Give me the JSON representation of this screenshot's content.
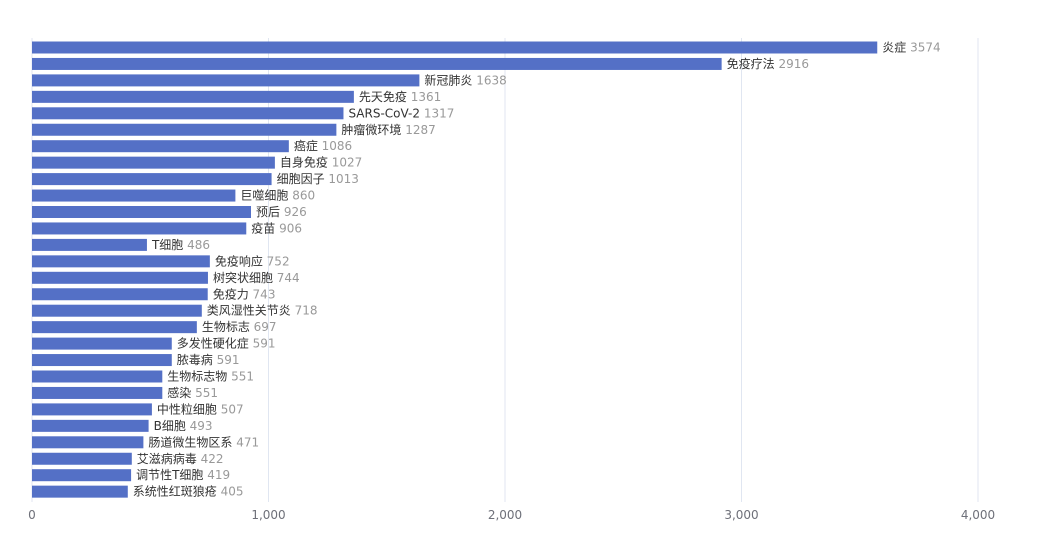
{
  "chart_data": {
    "type": "bar",
    "orientation": "horizontal",
    "categories": [
      "炎症",
      "免疫疗法",
      "新冠肺炎",
      "先天免疫",
      "SARS-CoV-2",
      "肿瘤微环境",
      "癌症",
      "自身免疫",
      "细胞因子",
      "巨噬细胞",
      "预后",
      "疫苗",
      "T细胞",
      "免疫响应",
      "树突状细胞",
      "免疫力",
      "类风湿性关节炎",
      "生物标志",
      "多发性硬化症",
      "脓毒病",
      "生物标志物",
      "感染",
      "中性粒细胞",
      "B细胞",
      "肠道微生物区系",
      "艾滋病病毒",
      "调节性T细胞",
      "系统性红斑狼疮"
    ],
    "values": [
      3574,
      2916,
      1638,
      1361,
      1317,
      1287,
      1086,
      1027,
      1013,
      860,
      926,
      906,
      486,
      752,
      744,
      743,
      718,
      697,
      591,
      591,
      551,
      551,
      507,
      493,
      471,
      422,
      419,
      405
    ],
    "x_ticks": [
      "0",
      "1,000",
      "2,000",
      "3,000",
      "4,000"
    ],
    "xlim": [
      0,
      4000
    ],
    "grid": true,
    "colors": {
      "bar": "#5470c6",
      "grid": "#e0e6f1",
      "label": "#333333",
      "value": "#999999",
      "tick": "#6e7079"
    }
  }
}
